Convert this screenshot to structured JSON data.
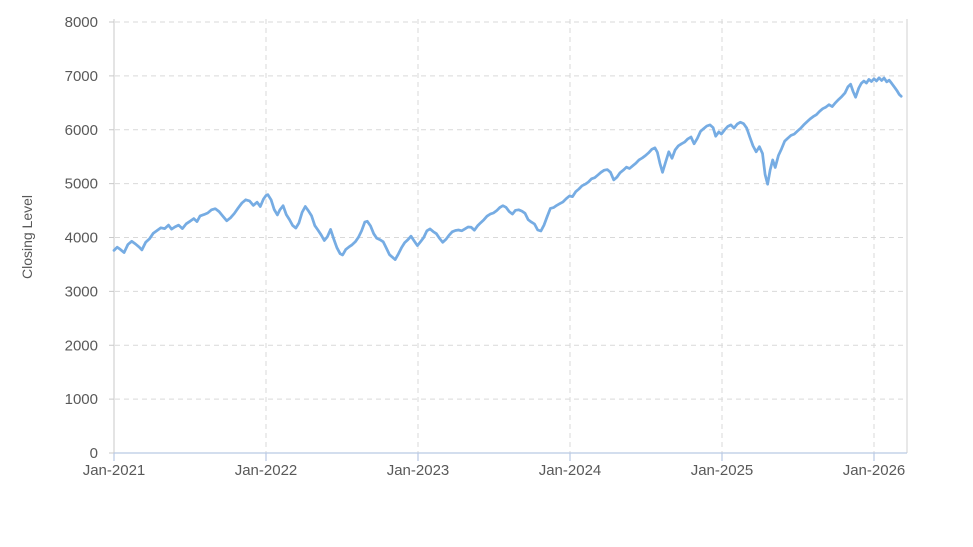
{
  "chart_data": {
    "type": "line",
    "title": "",
    "xlabel": "",
    "ylabel": "Closing Level",
    "legend": "none",
    "grid": "dashed",
    "ylim": [
      0,
      8000
    ],
    "xlim_months": [
      0,
      62.6
    ],
    "y_ticks": [
      0,
      1000,
      2000,
      3000,
      4000,
      5000,
      6000,
      7000,
      8000
    ],
    "x_tick_labels": [
      "Jan-2021",
      "Jan-2022",
      "Jan-2023",
      "Jan-2024",
      "Jan-2025",
      "Jan-2026"
    ],
    "x_tick_months": [
      0,
      12,
      24,
      36,
      48,
      60
    ],
    "colors": {
      "line": "#76ACE3",
      "grid": "#d9d9d9",
      "left_axis": "#c9c9c9",
      "right_border": "#d0d0d0",
      "bottom_axis": "#b9c9e4",
      "tick_text": "#595959",
      "axis_title_text": "#595959",
      "background": "#ffffff"
    },
    "series": [
      {
        "name": "Closing Level",
        "points": [
          [
            0,
            3760
          ],
          [
            0.25,
            3820
          ],
          [
            0.5,
            3780
          ],
          [
            0.8,
            3720
          ],
          [
            1.1,
            3870
          ],
          [
            1.4,
            3930
          ],
          [
            1.7,
            3880
          ],
          [
            2.0,
            3820
          ],
          [
            2.2,
            3770
          ],
          [
            2.5,
            3910
          ],
          [
            2.8,
            3975
          ],
          [
            3.1,
            4080
          ],
          [
            3.4,
            4130
          ],
          [
            3.7,
            4180
          ],
          [
            4.0,
            4165
          ],
          [
            4.3,
            4230
          ],
          [
            4.55,
            4155
          ],
          [
            4.8,
            4195
          ],
          [
            5.1,
            4230
          ],
          [
            5.4,
            4165
          ],
          [
            5.7,
            4255
          ],
          [
            6.0,
            4300
          ],
          [
            6.3,
            4350
          ],
          [
            6.55,
            4295
          ],
          [
            6.8,
            4400
          ],
          [
            7.1,
            4425
          ],
          [
            7.4,
            4455
          ],
          [
            7.7,
            4515
          ],
          [
            8.0,
            4535
          ],
          [
            8.3,
            4480
          ],
          [
            8.6,
            4395
          ],
          [
            8.9,
            4310
          ],
          [
            9.2,
            4365
          ],
          [
            9.5,
            4445
          ],
          [
            9.8,
            4545
          ],
          [
            10.1,
            4640
          ],
          [
            10.4,
            4700
          ],
          [
            10.7,
            4680
          ],
          [
            11.0,
            4595
          ],
          [
            11.3,
            4655
          ],
          [
            11.55,
            4575
          ],
          [
            11.8,
            4715
          ],
          [
            12.0,
            4780
          ],
          [
            12.15,
            4795
          ],
          [
            12.4,
            4700
          ],
          [
            12.65,
            4520
          ],
          [
            12.9,
            4420
          ],
          [
            13.1,
            4515
          ],
          [
            13.35,
            4590
          ],
          [
            13.6,
            4425
          ],
          [
            13.85,
            4335
          ],
          [
            14.1,
            4225
          ],
          [
            14.35,
            4175
          ],
          [
            14.6,
            4270
          ],
          [
            14.85,
            4465
          ],
          [
            15.1,
            4575
          ],
          [
            15.35,
            4495
          ],
          [
            15.6,
            4400
          ],
          [
            15.85,
            4220
          ],
          [
            16.1,
            4140
          ],
          [
            16.35,
            4050
          ],
          [
            16.6,
            3945
          ],
          [
            16.85,
            4015
          ],
          [
            17.1,
            4150
          ],
          [
            17.35,
            3970
          ],
          [
            17.6,
            3810
          ],
          [
            17.85,
            3700
          ],
          [
            18.05,
            3675
          ],
          [
            18.3,
            3780
          ],
          [
            18.55,
            3825
          ],
          [
            18.8,
            3865
          ],
          [
            19.05,
            3920
          ],
          [
            19.3,
            4005
          ],
          [
            19.55,
            4125
          ],
          [
            19.8,
            4285
          ],
          [
            20.0,
            4300
          ],
          [
            20.25,
            4215
          ],
          [
            20.5,
            4070
          ],
          [
            20.75,
            3985
          ],
          [
            21.0,
            3960
          ],
          [
            21.25,
            3920
          ],
          [
            21.5,
            3805
          ],
          [
            21.75,
            3680
          ],
          [
            22.0,
            3630
          ],
          [
            22.2,
            3590
          ],
          [
            22.45,
            3695
          ],
          [
            22.7,
            3810
          ],
          [
            22.95,
            3905
          ],
          [
            23.2,
            3960
          ],
          [
            23.45,
            4025
          ],
          [
            23.7,
            3935
          ],
          [
            23.95,
            3850
          ],
          [
            24.2,
            3920
          ],
          [
            24.45,
            4000
          ],
          [
            24.7,
            4125
          ],
          [
            24.95,
            4160
          ],
          [
            25.2,
            4110
          ],
          [
            25.45,
            4070
          ],
          [
            25.7,
            3985
          ],
          [
            25.95,
            3910
          ],
          [
            26.2,
            3965
          ],
          [
            26.45,
            4040
          ],
          [
            26.7,
            4105
          ],
          [
            26.95,
            4130
          ],
          [
            27.2,
            4140
          ],
          [
            27.45,
            4125
          ],
          [
            27.7,
            4160
          ],
          [
            27.95,
            4195
          ],
          [
            28.2,
            4190
          ],
          [
            28.45,
            4135
          ],
          [
            28.7,
            4215
          ],
          [
            28.95,
            4275
          ],
          [
            29.2,
            4330
          ],
          [
            29.45,
            4395
          ],
          [
            29.7,
            4435
          ],
          [
            29.95,
            4455
          ],
          [
            30.2,
            4495
          ],
          [
            30.45,
            4555
          ],
          [
            30.7,
            4590
          ],
          [
            30.95,
            4560
          ],
          [
            31.2,
            4480
          ],
          [
            31.45,
            4435
          ],
          [
            31.7,
            4505
          ],
          [
            31.95,
            4515
          ],
          [
            32.2,
            4490
          ],
          [
            32.45,
            4450
          ],
          [
            32.7,
            4330
          ],
          [
            32.95,
            4285
          ],
          [
            33.2,
            4250
          ],
          [
            33.45,
            4140
          ],
          [
            33.7,
            4120
          ],
          [
            33.95,
            4230
          ],
          [
            34.2,
            4390
          ],
          [
            34.45,
            4540
          ],
          [
            34.7,
            4555
          ],
          [
            34.95,
            4595
          ],
          [
            35.2,
            4630
          ],
          [
            35.45,
            4660
          ],
          [
            35.7,
            4720
          ],
          [
            35.95,
            4770
          ],
          [
            36.2,
            4760
          ],
          [
            36.45,
            4850
          ],
          [
            36.7,
            4900
          ],
          [
            36.95,
            4960
          ],
          [
            37.2,
            4990
          ],
          [
            37.45,
            5030
          ],
          [
            37.7,
            5090
          ],
          [
            37.95,
            5110
          ],
          [
            38.2,
            5160
          ],
          [
            38.45,
            5210
          ],
          [
            38.7,
            5250
          ],
          [
            38.95,
            5260
          ],
          [
            39.2,
            5210
          ],
          [
            39.45,
            5070
          ],
          [
            39.7,
            5120
          ],
          [
            39.95,
            5200
          ],
          [
            40.2,
            5250
          ],
          [
            40.45,
            5305
          ],
          [
            40.7,
            5280
          ],
          [
            40.95,
            5330
          ],
          [
            41.2,
            5380
          ],
          [
            41.45,
            5440
          ],
          [
            41.7,
            5475
          ],
          [
            41.95,
            5520
          ],
          [
            42.2,
            5570
          ],
          [
            42.45,
            5635
          ],
          [
            42.7,
            5665
          ],
          [
            42.9,
            5580
          ],
          [
            43.1,
            5380
          ],
          [
            43.3,
            5210
          ],
          [
            43.55,
            5400
          ],
          [
            43.8,
            5590
          ],
          [
            44.05,
            5470
          ],
          [
            44.3,
            5625
          ],
          [
            44.55,
            5700
          ],
          [
            44.8,
            5740
          ],
          [
            45.05,
            5770
          ],
          [
            45.3,
            5830
          ],
          [
            45.55,
            5865
          ],
          [
            45.8,
            5740
          ],
          [
            46.05,
            5840
          ],
          [
            46.3,
            5970
          ],
          [
            46.55,
            6020
          ],
          [
            46.8,
            6070
          ],
          [
            47.05,
            6090
          ],
          [
            47.3,
            6040
          ],
          [
            47.5,
            5880
          ],
          [
            47.75,
            5960
          ],
          [
            47.95,
            5920
          ],
          [
            48.2,
            5995
          ],
          [
            48.45,
            6060
          ],
          [
            48.7,
            6090
          ],
          [
            48.95,
            6030
          ],
          [
            49.2,
            6105
          ],
          [
            49.45,
            6140
          ],
          [
            49.7,
            6115
          ],
          [
            49.95,
            6030
          ],
          [
            50.2,
            5860
          ],
          [
            50.45,
            5700
          ],
          [
            50.7,
            5590
          ],
          [
            50.95,
            5685
          ],
          [
            51.2,
            5560
          ],
          [
            51.4,
            5170
          ],
          [
            51.6,
            4990
          ],
          [
            51.8,
            5250
          ],
          [
            52.0,
            5440
          ],
          [
            52.2,
            5300
          ],
          [
            52.45,
            5520
          ],
          [
            52.7,
            5645
          ],
          [
            52.95,
            5790
          ],
          [
            53.2,
            5845
          ],
          [
            53.45,
            5895
          ],
          [
            53.7,
            5920
          ],
          [
            53.95,
            5975
          ],
          [
            54.2,
            6025
          ],
          [
            54.45,
            6090
          ],
          [
            54.7,
            6145
          ],
          [
            54.95,
            6200
          ],
          [
            55.2,
            6245
          ],
          [
            55.45,
            6280
          ],
          [
            55.7,
            6340
          ],
          [
            55.95,
            6390
          ],
          [
            56.2,
            6420
          ],
          [
            56.45,
            6465
          ],
          [
            56.7,
            6430
          ],
          [
            56.95,
            6500
          ],
          [
            57.2,
            6560
          ],
          [
            57.45,
            6615
          ],
          [
            57.7,
            6680
          ],
          [
            57.95,
            6800
          ],
          [
            58.15,
            6845
          ],
          [
            58.35,
            6710
          ],
          [
            58.55,
            6605
          ],
          [
            58.8,
            6775
          ],
          [
            59.0,
            6860
          ],
          [
            59.2,
            6905
          ],
          [
            59.4,
            6865
          ],
          [
            59.6,
            6935
          ],
          [
            59.8,
            6895
          ],
          [
            60.0,
            6945
          ],
          [
            60.2,
            6905
          ],
          [
            60.4,
            6965
          ],
          [
            60.6,
            6915
          ],
          [
            60.8,
            6960
          ],
          [
            61.0,
            6890
          ],
          [
            61.2,
            6920
          ],
          [
            61.4,
            6860
          ],
          [
            61.6,
            6795
          ],
          [
            61.8,
            6730
          ],
          [
            62.0,
            6655
          ],
          [
            62.15,
            6620
          ]
        ]
      }
    ]
  }
}
